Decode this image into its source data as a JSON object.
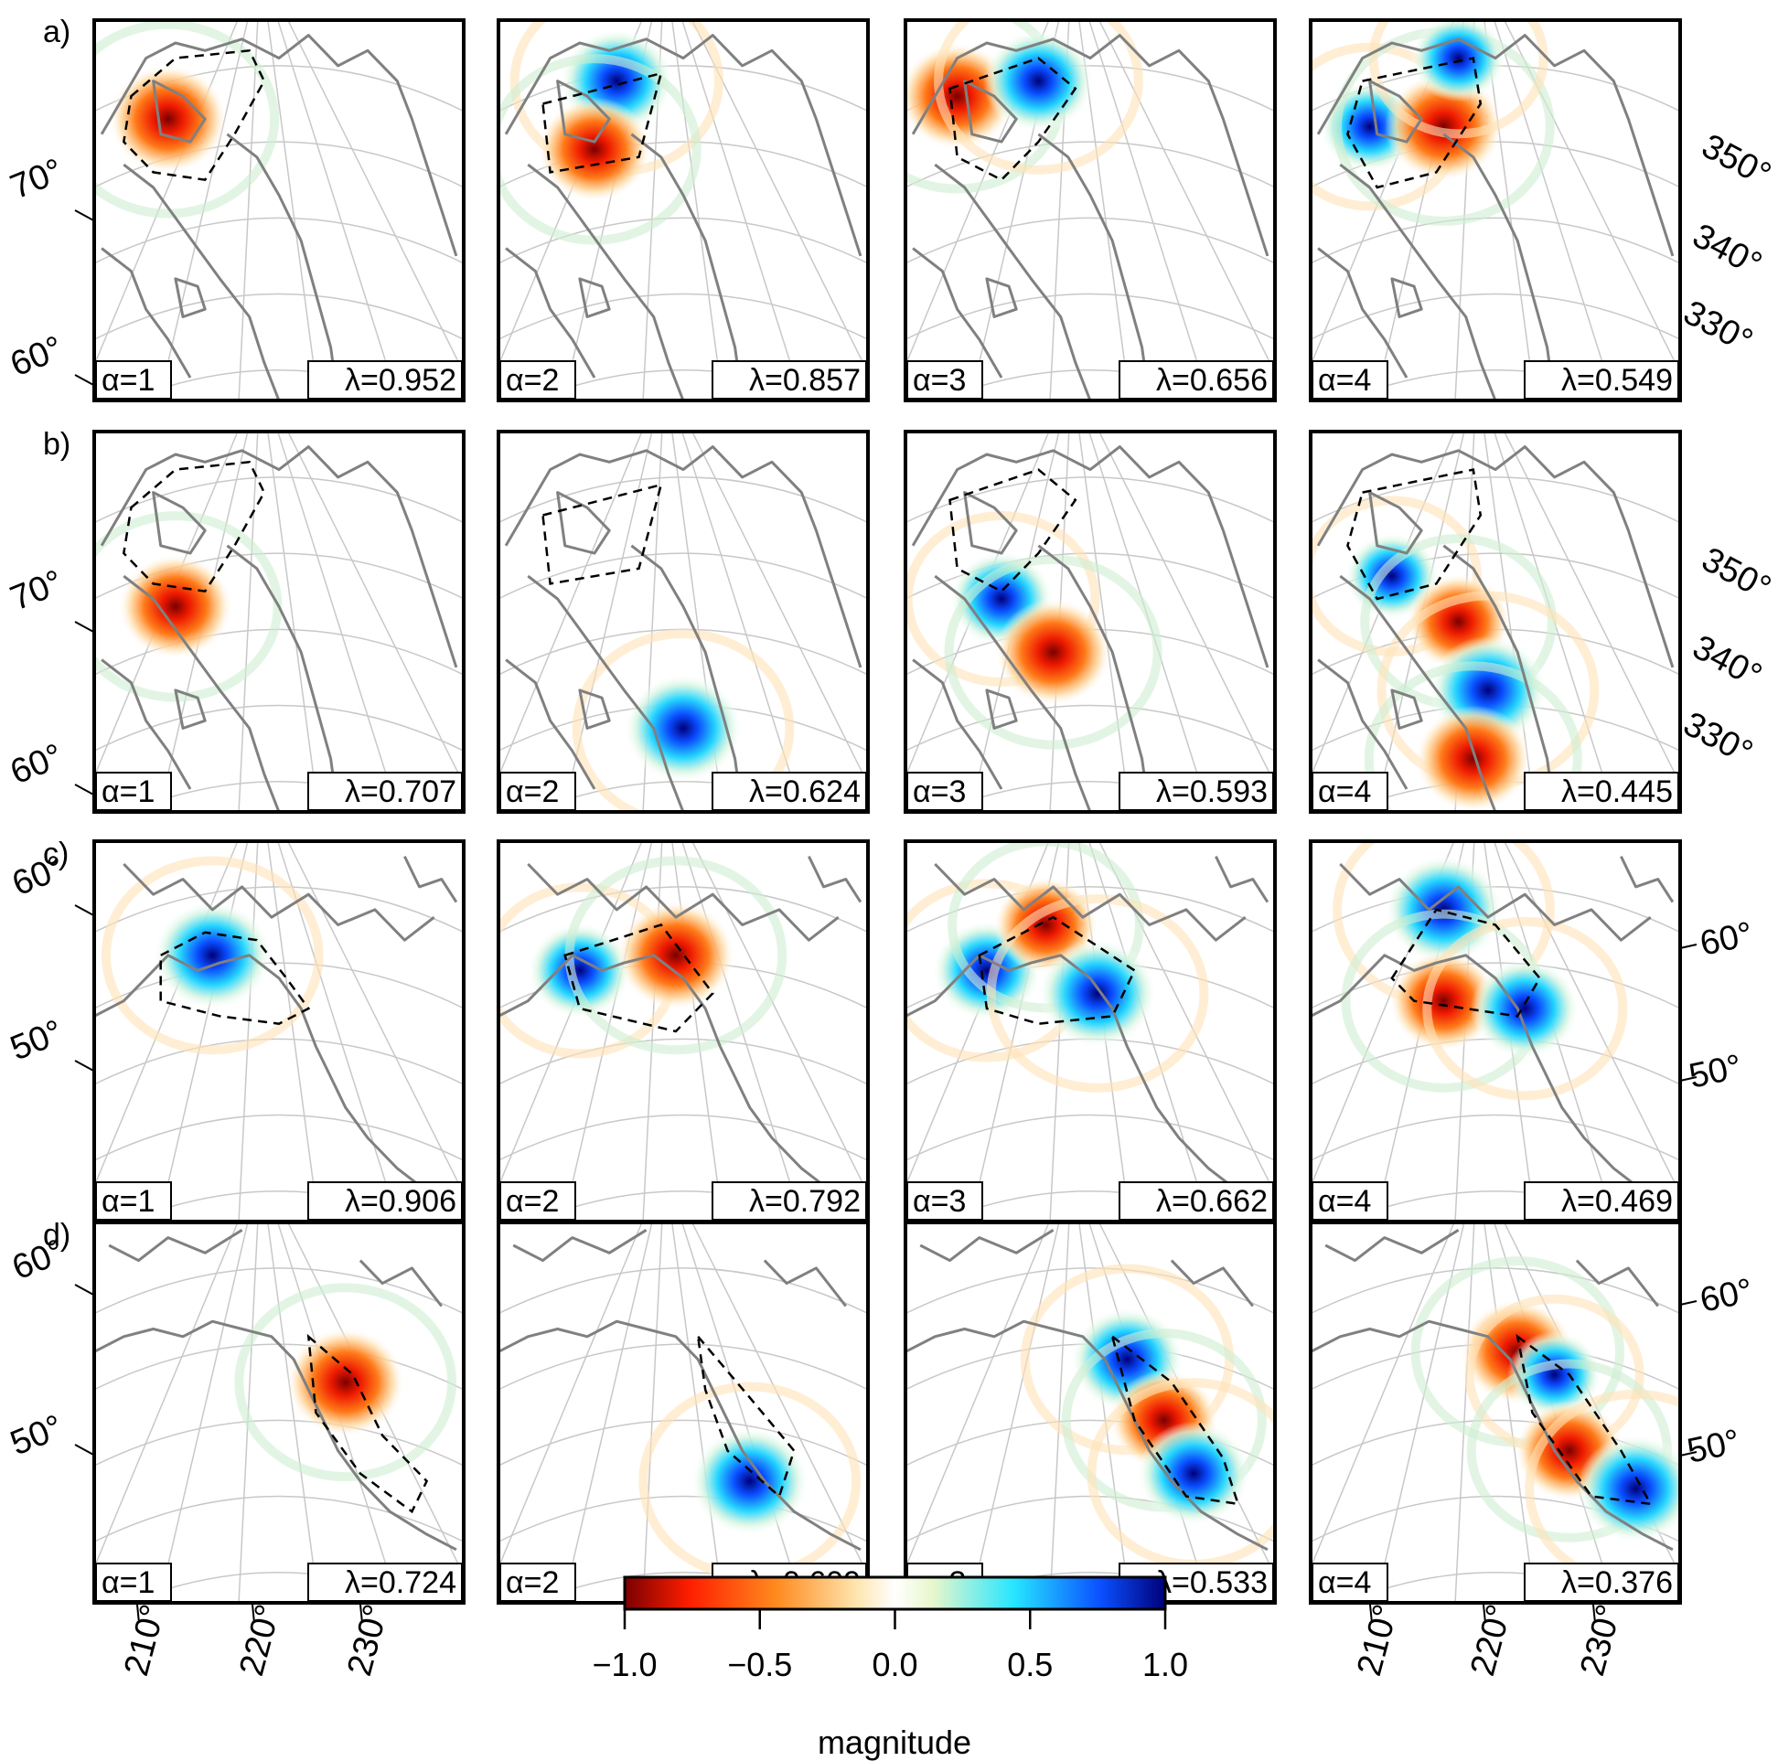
{
  "rows": [
    {
      "label": "a)",
      "region": "greenland",
      "panels": [
        {
          "alpha": "α=1",
          "lambda": "λ=0.952"
        },
        {
          "alpha": "α=2",
          "lambda": "λ=0.857"
        },
        {
          "alpha": "α=3",
          "lambda": "λ=0.656"
        },
        {
          "alpha": "α=4",
          "lambda": "λ=0.549"
        }
      ],
      "left_lat_labels": [
        "70°",
        "60°"
      ],
      "right_lon_labels": [
        "350°",
        "340°",
        "330°"
      ]
    },
    {
      "label": "b)",
      "region": "greenland",
      "panels": [
        {
          "alpha": "α=1",
          "lambda": "λ=0.707"
        },
        {
          "alpha": "α=2",
          "lambda": "λ=0.624"
        },
        {
          "alpha": "α=3",
          "lambda": "λ=0.593"
        },
        {
          "alpha": "α=4",
          "lambda": "λ=0.445"
        }
      ],
      "left_lat_labels": [
        "70°",
        "60°"
      ],
      "right_lon_labels": [
        "350°",
        "340°",
        "330°"
      ]
    },
    {
      "label": "c)",
      "region": "alaska",
      "panels": [
        {
          "alpha": "α=1",
          "lambda": "λ=0.906"
        },
        {
          "alpha": "α=2",
          "lambda": "λ=0.792"
        },
        {
          "alpha": "α=3",
          "lambda": "λ=0.662"
        },
        {
          "alpha": "α=4",
          "lambda": "λ=0.469"
        }
      ],
      "left_lat_labels": [
        "60°",
        "50°"
      ],
      "right_lat_labels": [
        "60°",
        "50°"
      ]
    },
    {
      "label": "d)",
      "region": "alaska-southeast",
      "panels": [
        {
          "alpha": "α=1",
          "lambda": "λ=0.724"
        },
        {
          "alpha": "α=2",
          "lambda": "λ=0.609"
        },
        {
          "alpha": "α=3",
          "lambda": "λ=0.533"
        },
        {
          "alpha": "α=4",
          "lambda": "λ=0.376"
        }
      ],
      "left_lat_labels": [
        "60°",
        "50°"
      ],
      "right_lat_labels": [
        "60°",
        "50°"
      ]
    }
  ],
  "bottom_lon_labels": [
    "210°",
    "220°",
    "230°"
  ],
  "colorbar": {
    "label": "magnitude",
    "ticks": [
      "−1.0",
      "−0.5",
      "0.0",
      "0.5",
      "1.0"
    ],
    "tick_values": [
      -1.0,
      -0.5,
      0.0,
      0.5,
      1.0
    ],
    "range": [
      -1.0,
      1.0
    ],
    "colors": [
      "#7a0000",
      "#ff2a00",
      "#ff8a1e",
      "#ffe6b0",
      "#ffffff",
      "#e8f7cc",
      "#26e6ff",
      "#0a50ff",
      "#00007a"
    ]
  },
  "colors": {
    "coastline": "#808080",
    "graticule": "#c8c8c8",
    "region_outline": "#000000",
    "panel_frame": "#000000"
  },
  "blobs": [
    [
      [
        [
          "r",
          1.0
        ]
      ],
      [
        [
          "b",
          0.9
        ],
        [
          "r",
          0.9
        ]
      ],
      [
        [
          "r",
          0.95
        ],
        [
          "b",
          0.85
        ]
      ],
      [
        [
          "b",
          0.6
        ],
        [
          "r",
          1.0
        ],
        [
          "b",
          0.5
        ]
      ]
    ],
    [
      [
        [
          "r",
          0.9
        ]
      ],
      [
        [
          "b",
          1.0
        ]
      ],
      [
        [
          "b",
          0.7
        ],
        [
          "r",
          0.95
        ]
      ],
      [
        [
          "b",
          0.5
        ],
        [
          "r",
          0.7
        ],
        [
          "b",
          1.0
        ],
        [
          "r",
          0.95
        ]
      ]
    ],
    [
      [
        [
          "b",
          1.0
        ]
      ],
      [
        [
          "b",
          0.7
        ],
        [
          "r",
          1.0
        ]
      ],
      [
        [
          "b",
          0.8
        ],
        [
          "r",
          0.7
        ],
        [
          "b",
          1.0
        ]
      ],
      [
        [
          "b",
          1.0
        ],
        [
          "r",
          0.8
        ],
        [
          "b",
          0.8
        ]
      ]
    ],
    [
      [
        [
          "r",
          1.0
        ]
      ],
      [
        [
          "b",
          1.0
        ]
      ],
      [
        [
          "b",
          0.9
        ],
        [
          "r",
          0.8
        ],
        [
          "b",
          0.9
        ]
      ],
      [
        [
          "r",
          0.9
        ],
        [
          "b",
          0.5
        ],
        [
          "r",
          0.8
        ],
        [
          "b",
          1.0
        ]
      ]
    ]
  ]
}
